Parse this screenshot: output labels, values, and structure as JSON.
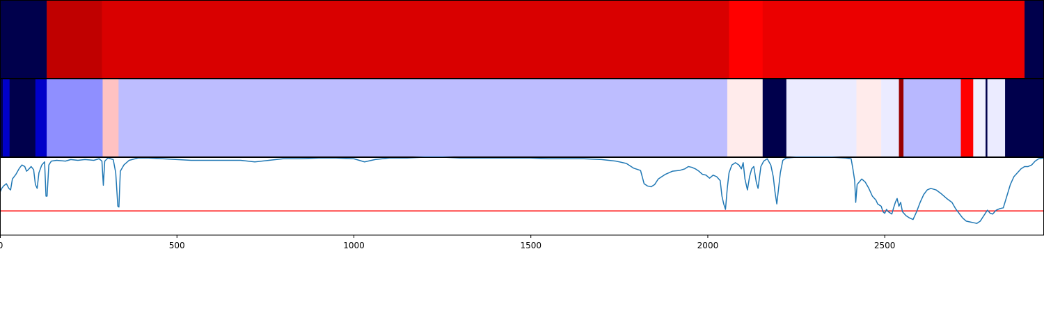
{
  "chart_data": [
    {
      "type": "heatmap",
      "colormap": "seismic",
      "value_range": [
        -1,
        1
      ],
      "x_range": [
        0,
        2950
      ],
      "segments": [
        {
          "start": 0,
          "end": 132,
          "value": -1.0
        },
        {
          "start": 132,
          "end": 288,
          "value": 0.75
        },
        {
          "start": 288,
          "end": 2060,
          "value": 0.65
        },
        {
          "start": 2060,
          "end": 2155,
          "value": 0.5
        },
        {
          "start": 2155,
          "end": 2895,
          "value": 0.58
        },
        {
          "start": 2895,
          "end": 2950,
          "value": -1.0
        }
      ]
    },
    {
      "type": "heatmap",
      "colormap": "seismic",
      "value_range": [
        -1,
        1
      ],
      "x_range": [
        0,
        2950
      ],
      "segments": [
        {
          "start": 0,
          "end": 8,
          "value": -1.0
        },
        {
          "start": 8,
          "end": 27,
          "value": -0.65
        },
        {
          "start": 27,
          "end": 100,
          "value": -1.0
        },
        {
          "start": 100,
          "end": 132,
          "value": -0.65
        },
        {
          "start": 132,
          "end": 290,
          "value": -0.22
        },
        {
          "start": 290,
          "end": 335,
          "value": 0.12
        },
        {
          "start": 335,
          "end": 2055,
          "value": -0.13
        },
        {
          "start": 2055,
          "end": 2155,
          "value": 0.04
        },
        {
          "start": 2155,
          "end": 2222,
          "value": -1.0
        },
        {
          "start": 2222,
          "end": 2420,
          "value": -0.04
        },
        {
          "start": 2420,
          "end": 2490,
          "value": 0.04
        },
        {
          "start": 2490,
          "end": 2540,
          "value": -0.04
        },
        {
          "start": 2540,
          "end": 2553,
          "value": 0.9
        },
        {
          "start": 2553,
          "end": 2715,
          "value": -0.14
        },
        {
          "start": 2715,
          "end": 2750,
          "value": 0.5
        },
        {
          "start": 2750,
          "end": 2785,
          "value": -0.03
        },
        {
          "start": 2785,
          "end": 2790,
          "value": -1.0
        },
        {
          "start": 2790,
          "end": 2840,
          "value": -0.04
        },
        {
          "start": 2840,
          "end": 2950,
          "value": -1.0
        }
      ]
    },
    {
      "type": "line",
      "x_ticks": [
        0,
        500,
        1000,
        1500,
        2000,
        2500
      ],
      "x_tick_labels": [
        "0",
        "500",
        "1000",
        "1500",
        "2000",
        "2500"
      ],
      "xlim": [
        0,
        2950
      ],
      "ylim": [
        0,
        1
      ],
      "series": [
        {
          "color": "#1f77b4",
          "points": [
            [
              0,
              0.55
            ],
            [
              5,
              0.6
            ],
            [
              10,
              0.63
            ],
            [
              18,
              0.66
            ],
            [
              25,
              0.6
            ],
            [
              30,
              0.58
            ],
            [
              35,
              0.72
            ],
            [
              45,
              0.78
            ],
            [
              55,
              0.86
            ],
            [
              62,
              0.9
            ],
            [
              70,
              0.88
            ],
            [
              75,
              0.82
            ],
            [
              80,
              0.84
            ],
            [
              88,
              0.88
            ],
            [
              95,
              0.84
            ],
            [
              100,
              0.65
            ],
            [
              105,
              0.6
            ],
            [
              110,
              0.8
            ],
            [
              118,
              0.9
            ],
            [
              126,
              0.94
            ],
            [
              130,
              0.5
            ],
            [
              133,
              0.5
            ],
            [
              138,
              0.9
            ],
            [
              145,
              0.95
            ],
            [
              160,
              0.96
            ],
            [
              185,
              0.95
            ],
            [
              200,
              0.97
            ],
            [
              220,
              0.96
            ],
            [
              240,
              0.97
            ],
            [
              265,
              0.96
            ],
            [
              280,
              0.98
            ],
            [
              288,
              0.95
            ],
            [
              292,
              0.64
            ],
            [
              296,
              0.95
            ],
            [
              305,
              0.99
            ],
            [
              320,
              0.97
            ],
            [
              327,
              0.8
            ],
            [
              333,
              0.37
            ],
            [
              336,
              0.36
            ],
            [
              340,
              0.82
            ],
            [
              350,
              0.9
            ],
            [
              365,
              0.96
            ],
            [
              390,
              0.99
            ],
            [
              420,
              0.99
            ],
            [
              460,
              0.98
            ],
            [
              500,
              0.97
            ],
            [
              540,
              0.96
            ],
            [
              570,
              0.96
            ],
            [
              600,
              0.96
            ],
            [
              640,
              0.96
            ],
            [
              680,
              0.96
            ],
            [
              720,
              0.94
            ],
            [
              760,
              0.96
            ],
            [
              800,
              0.98
            ],
            [
              850,
              0.98
            ],
            [
              900,
              0.99
            ],
            [
              950,
              0.99
            ],
            [
              1000,
              0.98
            ],
            [
              1030,
              0.94
            ],
            [
              1060,
              0.97
            ],
            [
              1100,
              0.99
            ],
            [
              1150,
              0.99
            ],
            [
              1200,
              1.0
            ],
            [
              1250,
              1.0
            ],
            [
              1300,
              0.99
            ],
            [
              1350,
              0.99
            ],
            [
              1400,
              0.99
            ],
            [
              1450,
              0.99
            ],
            [
              1500,
              0.99
            ],
            [
              1550,
              0.98
            ],
            [
              1600,
              0.98
            ],
            [
              1650,
              0.98
            ],
            [
              1700,
              0.97
            ],
            [
              1740,
              0.95
            ],
            [
              1770,
              0.92
            ],
            [
              1790,
              0.86
            ],
            [
              1810,
              0.83
            ],
            [
              1820,
              0.66
            ],
            [
              1830,
              0.63
            ],
            [
              1840,
              0.62
            ],
            [
              1850,
              0.65
            ],
            [
              1860,
              0.72
            ],
            [
              1880,
              0.78
            ],
            [
              1900,
              0.82
            ],
            [
              1920,
              0.83
            ],
            [
              1935,
              0.85
            ],
            [
              1945,
              0.88
            ],
            [
              1955,
              0.87
            ],
            [
              1965,
              0.85
            ],
            [
              1975,
              0.82
            ],
            [
              1985,
              0.78
            ],
            [
              1995,
              0.77
            ],
            [
              2005,
              0.73
            ],
            [
              2015,
              0.77
            ],
            [
              2025,
              0.75
            ],
            [
              2035,
              0.7
            ],
            [
              2040,
              0.5
            ],
            [
              2045,
              0.4
            ],
            [
              2050,
              0.33
            ],
            [
              2055,
              0.6
            ],
            [
              2060,
              0.8
            ],
            [
              2068,
              0.9
            ],
            [
              2078,
              0.93
            ],
            [
              2088,
              0.9
            ],
            [
              2095,
              0.85
            ],
            [
              2100,
              0.93
            ],
            [
              2105,
              0.72
            ],
            [
              2112,
              0.58
            ],
            [
              2118,
              0.75
            ],
            [
              2124,
              0.85
            ],
            [
              2130,
              0.88
            ],
            [
              2137,
              0.68
            ],
            [
              2142,
              0.6
            ],
            [
              2150,
              0.88
            ],
            [
              2158,
              0.95
            ],
            [
              2168,
              0.98
            ],
            [
              2178,
              0.9
            ],
            [
              2185,
              0.75
            ],
            [
              2190,
              0.55
            ],
            [
              2195,
              0.4
            ],
            [
              2200,
              0.6
            ],
            [
              2205,
              0.8
            ],
            [
              2212,
              0.96
            ],
            [
              2222,
              0.99
            ],
            [
              2250,
              1.0
            ],
            [
              2300,
              1.0
            ],
            [
              2350,
              1.0
            ],
            [
              2390,
              0.99
            ],
            [
              2405,
              0.98
            ],
            [
              2410,
              0.85
            ],
            [
              2415,
              0.7
            ],
            [
              2418,
              0.42
            ],
            [
              2422,
              0.65
            ],
            [
              2435,
              0.72
            ],
            [
              2445,
              0.68
            ],
            [
              2455,
              0.6
            ],
            [
              2465,
              0.5
            ],
            [
              2475,
              0.45
            ],
            [
              2480,
              0.4
            ],
            [
              2490,
              0.37
            ],
            [
              2495,
              0.3
            ],
            [
              2500,
              0.28
            ],
            [
              2505,
              0.33
            ],
            [
              2510,
              0.3
            ],
            [
              2520,
              0.27
            ],
            [
              2525,
              0.35
            ],
            [
              2530,
              0.42
            ],
            [
              2535,
              0.47
            ],
            [
              2540,
              0.37
            ],
            [
              2545,
              0.42
            ],
            [
              2550,
              0.3
            ],
            [
              2560,
              0.25
            ],
            [
              2570,
              0.22
            ],
            [
              2580,
              0.2
            ],
            [
              2590,
              0.3
            ],
            [
              2600,
              0.42
            ],
            [
              2610,
              0.52
            ],
            [
              2620,
              0.58
            ],
            [
              2630,
              0.6
            ],
            [
              2645,
              0.58
            ],
            [
              2660,
              0.53
            ],
            [
              2675,
              0.47
            ],
            [
              2690,
              0.42
            ],
            [
              2700,
              0.34
            ],
            [
              2710,
              0.28
            ],
            [
              2720,
              0.22
            ],
            [
              2730,
              0.18
            ],
            [
              2740,
              0.17
            ],
            [
              2750,
              0.16
            ],
            [
              2760,
              0.15
            ],
            [
              2770,
              0.18
            ],
            [
              2780,
              0.25
            ],
            [
              2790,
              0.32
            ],
            [
              2798,
              0.28
            ],
            [
              2805,
              0.27
            ],
            [
              2815,
              0.32
            ],
            [
              2825,
              0.34
            ],
            [
              2835,
              0.35
            ],
            [
              2845,
              0.5
            ],
            [
              2855,
              0.65
            ],
            [
              2865,
              0.75
            ],
            [
              2875,
              0.8
            ],
            [
              2885,
              0.85
            ],
            [
              2895,
              0.88
            ],
            [
              2905,
              0.88
            ],
            [
              2915,
              0.9
            ],
            [
              2925,
              0.95
            ],
            [
              2935,
              0.98
            ],
            [
              2950,
              0.99
            ]
          ]
        }
      ],
      "threshold": {
        "value": 0.31,
        "color": "#ff0000"
      }
    }
  ]
}
